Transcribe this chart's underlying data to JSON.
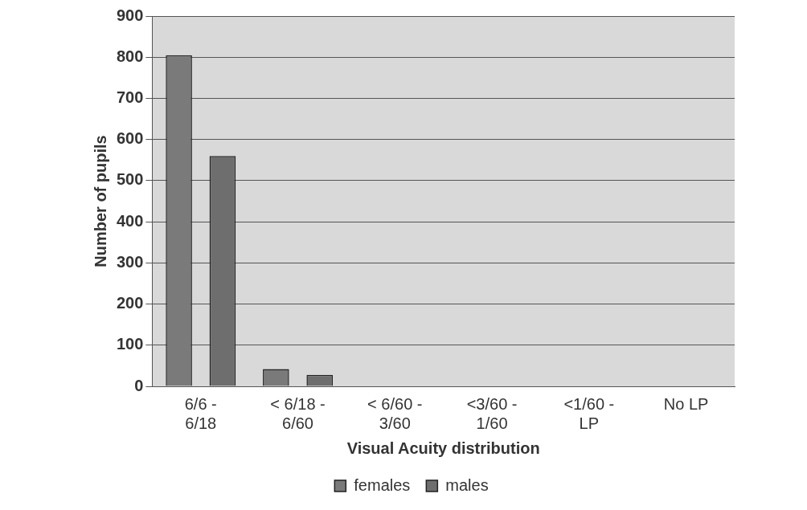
{
  "chart_data": {
    "type": "bar",
    "xlabel": "Visual Acuity distribution",
    "ylabel": "Number of pupils",
    "categories": [
      "6/6 -\n6/18",
      "< 6/18 -\n6/60",
      "< 6/60 -\n3/60",
      "<3/60 -\n1/60",
      "<1/60 -\nLP",
      "No LP"
    ],
    "series": [
      {
        "name": "females",
        "color": "#7a7a7a",
        "values": [
          805,
          42,
          0,
          0,
          0,
          0
        ]
      },
      {
        "name": "males",
        "color": "#6e6e6e",
        "values": [
          560,
          28,
          0,
          0,
          0,
          0
        ]
      }
    ],
    "ylim": [
      0,
      900
    ],
    "yticks": [
      0,
      100,
      200,
      300,
      400,
      500,
      600,
      700,
      800,
      900
    ],
    "grid": "y",
    "legend": "bottom"
  }
}
